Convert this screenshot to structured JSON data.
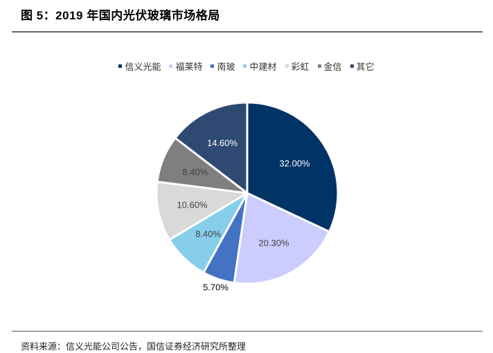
{
  "figure": {
    "title": "图 5：2019 年国内光伏玻璃市场格局",
    "source": "资料来源：信义光能公司公告，国信证券经济研究所整理"
  },
  "legend": [
    {
      "label": "信义光能",
      "color": "#003366"
    },
    {
      "label": "福莱特",
      "color": "#CCCCFF"
    },
    {
      "label": "南玻",
      "color": "#4472C4"
    },
    {
      "label": "中建材",
      "color": "#87CEEB"
    },
    {
      "label": "彩虹",
      "color": "#D9D9D9"
    },
    {
      "label": "金信",
      "color": "#7F7F7F"
    },
    {
      "label": "其它",
      "color": "#2E4A73"
    }
  ],
  "chart_data": {
    "type": "pie",
    "title": "2019 年国内光伏玻璃市场格局",
    "categories": [
      "信义光能",
      "福莱特",
      "南玻",
      "中建材",
      "彩虹",
      "金信",
      "其它"
    ],
    "values": [
      32.0,
      20.3,
      5.7,
      8.4,
      10.6,
      8.4,
      14.6
    ],
    "labels": [
      "32.00%",
      "20.30%",
      "5.70%",
      "8.40%",
      "10.60%",
      "8.40%",
      "14.60%"
    ],
    "colors": [
      "#003366",
      "#CCCCFF",
      "#4472C4",
      "#87CEEB",
      "#D9D9D9",
      "#7F7F7F",
      "#2E4A73"
    ],
    "label_colors": [
      "#FFFFFF",
      "#404040",
      "#000000",
      "#404040",
      "#404040",
      "#404040",
      "#FFFFFF"
    ],
    "label_outside": [
      false,
      false,
      true,
      false,
      false,
      false,
      false
    ],
    "start_angle_deg": 0,
    "direction": "clockwise",
    "legend_position": "top",
    "unit": "%"
  }
}
